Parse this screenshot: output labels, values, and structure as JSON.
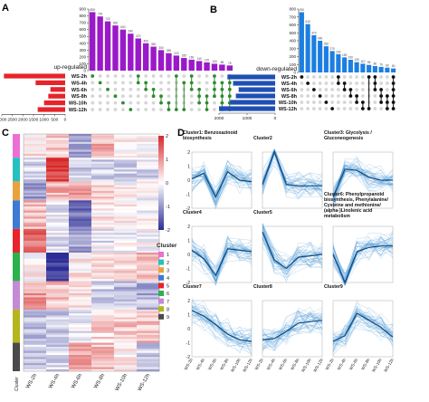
{
  "panels": {
    "a": {
      "label": "A"
    },
    "b": {
      "label": "B"
    },
    "c": {
      "label": "C"
    },
    "d": {
      "label": "D"
    }
  },
  "upset_sets": [
    "WS-2h",
    "WS-4h",
    "WS-6h",
    "WS-8h",
    "WS-10h",
    "WS-12h"
  ],
  "chart_data": [
    {
      "type": "bar",
      "panel": "A",
      "name": "upset-up-regulated",
      "side_label": "up-regulated",
      "intersection_sizes": [
        855,
        792,
        720,
        660,
        600,
        540,
        470,
        400,
        350,
        300,
        255,
        220,
        185,
        160,
        140,
        120,
        100,
        88,
        75
      ],
      "bar_labels": [
        "855",
        "792",
        "720",
        "660",
        "600",
        "540",
        "470",
        "400",
        "350",
        "300",
        "255",
        "220",
        "185",
        "160",
        "140",
        "120",
        "100",
        "88",
        "75"
      ],
      "ylim": [
        0,
        900
      ],
      "yticks": [
        "0",
        "100",
        "200",
        "300",
        "400",
        "500",
        "600",
        "700",
        "800",
        "900"
      ],
      "set_sizes": [
        2900,
        1400,
        700,
        800,
        1000,
        1300
      ],
      "set_ticks": [
        "3000",
        "2500",
        "2000",
        "1500",
        "1000",
        "500",
        "0"
      ],
      "matrix": [
        [
          0
        ],
        [
          1
        ],
        [
          2
        ],
        [
          3
        ],
        [
          4
        ],
        [
          5
        ],
        [
          0,
          1
        ],
        [
          1,
          2
        ],
        [
          2,
          3
        ],
        [
          3,
          4
        ],
        [
          4,
          5
        ],
        [
          0,
          5
        ],
        [
          1,
          5
        ],
        [
          0,
          1,
          2
        ],
        [
          2,
          3,
          4
        ],
        [
          3,
          4,
          5
        ],
        [
          0,
          1,
          2,
          3
        ],
        [
          1,
          2,
          3,
          4,
          5
        ],
        [
          0,
          1,
          2,
          3,
          4,
          5
        ]
      ],
      "bar_color": "#9b19c8",
      "set_color": "#e8232a",
      "dot_color": "#2e8b2e"
    },
    {
      "type": "bar",
      "panel": "B",
      "name": "upset-down-regulated",
      "side_label": "down-regulated",
      "intersection_sizes": [
        760,
        610,
        470,
        400,
        330,
        270,
        230,
        190,
        160,
        130,
        110,
        95,
        80,
        70,
        60,
        50
      ],
      "bar_labels": [
        "760",
        "610",
        "470",
        "400",
        "330",
        "270",
        "230",
        "190",
        "160",
        "130",
        "110",
        "95",
        "80",
        "70",
        "60",
        "50"
      ],
      "ylim": [
        0,
        800
      ],
      "yticks": [
        "0",
        "100",
        "200",
        "300",
        "400",
        "500",
        "600",
        "700",
        "800"
      ],
      "set_sizes": [
        1700,
        1500,
        1300,
        1400,
        1600,
        2000
      ],
      "set_ticks": [
        "2000",
        "1000",
        "0"
      ],
      "matrix": [
        [
          0
        ],
        [
          1
        ],
        [
          2
        ],
        [
          3
        ],
        [
          4
        ],
        [
          5
        ],
        [
          0,
          1
        ],
        [
          1,
          2
        ],
        [
          2,
          3
        ],
        [
          3,
          4
        ],
        [
          4,
          5
        ],
        [
          0,
          5
        ],
        [
          0,
          1,
          2
        ],
        [
          2,
          3,
          4
        ],
        [
          3,
          4,
          5
        ],
        [
          0,
          1,
          2,
          3,
          4,
          5
        ]
      ],
      "bar_color": "#1c7ee0",
      "set_color": "#1f4fb4",
      "dot_color": "#111111"
    },
    {
      "type": "heatmap",
      "panel": "C",
      "name": "heatmap",
      "columns": [
        "WS-2h",
        "WS-4h",
        "WS-6h",
        "WS-8h",
        "WS-10h",
        "WS-12h"
      ],
      "colorbar": {
        "ticks": [
          "2",
          "1",
          "0",
          "-1",
          "-2"
        ],
        "min": -2,
        "max": 2
      },
      "row_annotation_label": "Cluster",
      "legend_title": "Cluster",
      "clusters": [
        {
          "name": "1",
          "color": "#ec6fd4"
        },
        {
          "name": "2",
          "color": "#27c0c0"
        },
        {
          "name": "3",
          "color": "#e8a33c"
        },
        {
          "name": "4",
          "color": "#3c7ad6"
        },
        {
          "name": "5",
          "color": "#e8232a"
        },
        {
          "name": "6",
          "color": "#2bb24a"
        },
        {
          "name": "7",
          "color": "#c58ad6"
        },
        {
          "name": "8",
          "color": "#b5b51e"
        },
        {
          "name": "9",
          "color": "#4a4a4a"
        }
      ],
      "cluster_fraction": [
        0.1,
        0.1,
        0.08,
        0.12,
        0.1,
        0.12,
        0.12,
        0.14,
        0.12
      ],
      "cluster_profiles": [
        [
          0.2,
          0.5,
          -0.8,
          0.7,
          0.1,
          0.0
        ],
        [
          -0.3,
          1.9,
          -0.4,
          -0.4,
          -0.4,
          -0.3
        ],
        [
          -0.9,
          0.7,
          0.8,
          0.3,
          0.1,
          0.0
        ],
        [
          0.6,
          -0.2,
          -1.3,
          0.2,
          0.1,
          0.0
        ],
        [
          1.4,
          -0.3,
          -0.8,
          -0.2,
          -0.1,
          0.0
        ],
        [
          0.1,
          -1.9,
          0.2,
          0.4,
          0.5,
          0.6
        ],
        [
          0.9,
          0.6,
          0.3,
          -0.5,
          -0.6,
          -0.7
        ],
        [
          -0.6,
          -0.5,
          -0.2,
          0.4,
          0.5,
          0.6
        ],
        [
          -0.5,
          -0.4,
          0.8,
          0.6,
          0.2,
          -0.5
        ]
      ]
    },
    {
      "type": "line",
      "panel": "D",
      "name": "cluster-profiles",
      "x": [
        "WS-2h",
        "WS-4h",
        "WS-6h",
        "WS-8h",
        "WS-10h",
        "WS-12h"
      ],
      "ylim": [
        -2,
        2
      ],
      "yticks": [
        "2",
        "1",
        "0",
        "-1",
        "-2"
      ],
      "line_color": "#0e4a80",
      "band_color": "#3d8fd1",
      "clusters": [
        {
          "title": "Cluster1: Benzoxazinoid biosynthesis",
          "mean": [
            0.1,
            0.5,
            -1.2,
            0.6,
            0.0,
            -0.1
          ]
        },
        {
          "title": "Cluster2",
          "mean": [
            -0.3,
            2.0,
            -0.3,
            -0.4,
            -0.4,
            -0.4
          ]
        },
        {
          "title": "Cluster3: Glycolysis / Gluconeogenesis",
          "mean": [
            -1.2,
            0.8,
            0.7,
            0.2,
            0.0,
            0.0
          ]
        },
        {
          "title": "Cluster4",
          "mean": [
            0.3,
            -0.3,
            -1.5,
            0.4,
            0.3,
            0.2
          ]
        },
        {
          "title": "Cluster5",
          "mean": [
            1.6,
            -0.4,
            -1.0,
            -0.2,
            -0.1,
            0.0
          ]
        },
        {
          "title": "Cluster6: Phenylpropanoid biosynthesis, Phenylalanine/ Cysteine and methionine/ (alpha-)Linolenic acid metabolism",
          "mean": [
            0.0,
            -2.0,
            0.2,
            0.5,
            0.6,
            0.6
          ]
        },
        {
          "title": "Cluster7",
          "mean": [
            1.3,
            0.9,
            0.3,
            -0.4,
            -0.8,
            -0.9
          ]
        },
        {
          "title": "Cluster8",
          "mean": [
            -0.8,
            -0.7,
            -0.2,
            0.4,
            0.5,
            0.6
          ]
        },
        {
          "title": "Cluster9",
          "mean": [
            -0.9,
            -0.5,
            1.1,
            0.6,
            0.1,
            -0.6
          ]
        }
      ]
    }
  ]
}
